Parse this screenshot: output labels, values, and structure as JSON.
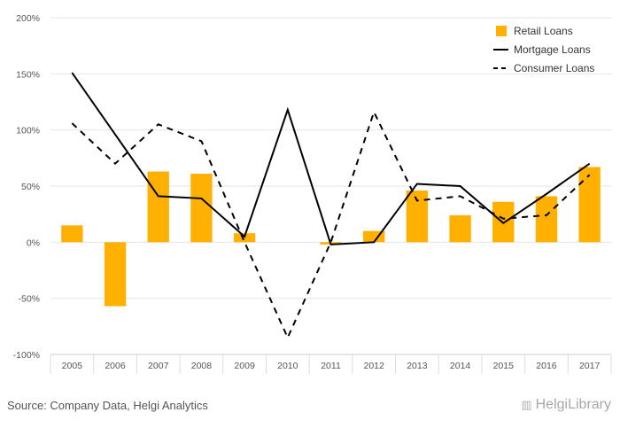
{
  "chart_data": {
    "type": "bar",
    "categories": [
      "2005",
      "2006",
      "2007",
      "2008",
      "2009",
      "2010",
      "2011",
      "2012",
      "2013",
      "2014",
      "2015",
      "2016",
      "2017"
    ],
    "ylim": [
      -100,
      200
    ],
    "yticks": [
      -100,
      -50,
      0,
      50,
      100,
      150,
      200
    ],
    "ytick_labels": [
      "-100%",
      "-50%",
      "0%",
      "50%",
      "100%",
      "150%",
      "200%"
    ],
    "grid": true,
    "legend_position": "top-right",
    "series": [
      {
        "name": "Retail Loans",
        "type": "bar",
        "color": "#FFB000",
        "values": [
          15,
          -57,
          63,
          61,
          8,
          0,
          -2,
          10,
          46,
          24,
          36,
          41,
          67
        ]
      },
      {
        "name": "Mortgage Loans",
        "type": "line",
        "style": "solid",
        "color": "#000000",
        "values": [
          151,
          96,
          41,
          39,
          5,
          118,
          -2,
          0,
          52,
          50,
          17,
          43,
          70
        ]
      },
      {
        "name": "Consumer Loans",
        "type": "line",
        "style": "dashed",
        "color": "#000000",
        "values": [
          106,
          70,
          105,
          90,
          0,
          -85,
          0,
          116,
          37,
          41,
          21,
          24,
          60
        ]
      }
    ]
  },
  "footer": {
    "source": "Source: Company Data, Helgi Analytics",
    "logo_text": "HelgiLibrary",
    "logo_icon": "library-icon"
  }
}
